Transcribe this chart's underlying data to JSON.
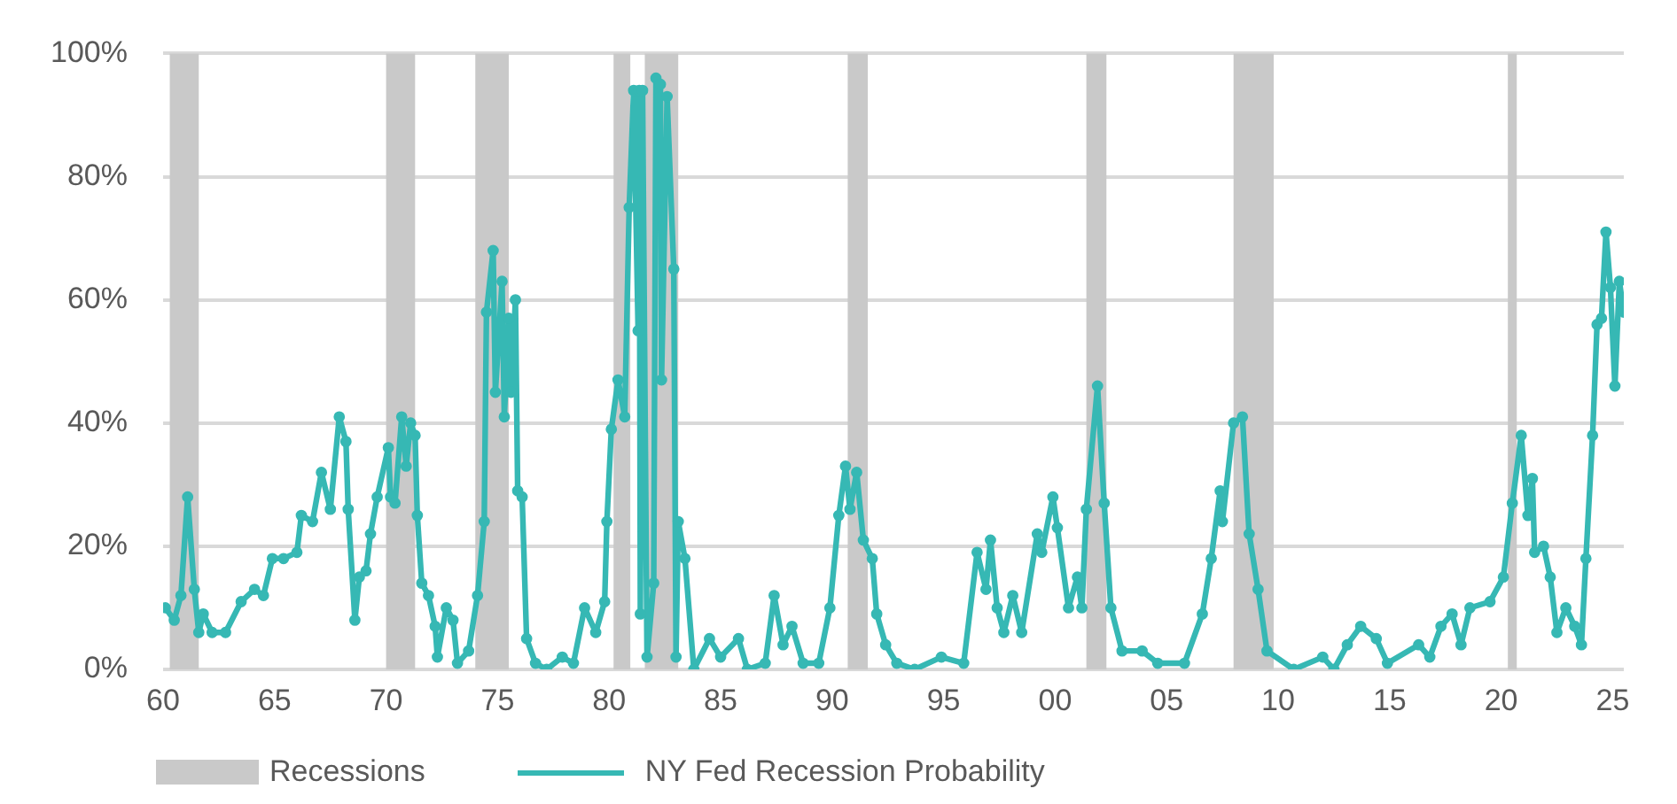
{
  "chart_data": {
    "type": "line",
    "xlim": [
      1960,
      2025.5
    ],
    "xticks": [
      {
        "value": 1960,
        "label": "60"
      },
      {
        "value": 1965,
        "label": "65"
      },
      {
        "value": 1970,
        "label": "70"
      },
      {
        "value": 1975,
        "label": "75"
      },
      {
        "value": 1980,
        "label": "80"
      },
      {
        "value": 1985,
        "label": "85"
      },
      {
        "value": 1990,
        "label": "90"
      },
      {
        "value": 1995,
        "label": "95"
      },
      {
        "value": 2000,
        "label": "00"
      },
      {
        "value": 2005,
        "label": "05"
      },
      {
        "value": 2010,
        "label": "10"
      },
      {
        "value": 2015,
        "label": "15"
      },
      {
        "value": 2020,
        "label": "20"
      },
      {
        "value": 2025,
        "label": "25"
      }
    ],
    "ylim": [
      0,
      100
    ],
    "yticks": [
      {
        "value": 0,
        "label": "0%"
      },
      {
        "value": 20,
        "label": "20%"
      },
      {
        "value": 40,
        "label": "40%"
      },
      {
        "value": 60,
        "label": "60%"
      },
      {
        "value": 80,
        "label": "80%"
      },
      {
        "value": 100,
        "label": "100%"
      }
    ],
    "grid": "y",
    "legend": "bottom",
    "marker": "circle",
    "bands": [
      {
        "axis": "x",
        "from": 1960.3,
        "to": 1961.6,
        "label": "Recessions",
        "color": "#c9c9c9"
      },
      {
        "axis": "x",
        "from": 1970.0,
        "to": 1971.3,
        "color": "#c9c9c9"
      },
      {
        "axis": "x",
        "from": 1974.0,
        "to": 1975.5,
        "color": "#c9c9c9"
      },
      {
        "axis": "x",
        "from": 1980.2,
        "to": 1980.95,
        "color": "#c9c9c9"
      },
      {
        "axis": "x",
        "from": 1981.6,
        "to": 1983.1,
        "color": "#c9c9c9"
      },
      {
        "axis": "x",
        "from": 1990.7,
        "to": 1991.6,
        "color": "#c9c9c9"
      },
      {
        "axis": "x",
        "from": 2001.4,
        "to": 2002.3,
        "color": "#c9c9c9"
      },
      {
        "axis": "x",
        "from": 2008.0,
        "to": 2009.8,
        "color": "#c9c9c9"
      },
      {
        "axis": "x",
        "from": 2020.3,
        "to": 2020.7,
        "color": "#c9c9c9"
      }
    ],
    "series": [
      {
        "name": "NY Fed Recession Probability",
        "color": "#36b8b4",
        "x": [
          1960.1,
          1960.5,
          1960.8,
          1961.1,
          1961.4,
          1961.6,
          1961.8,
          1962.2,
          1962.8,
          1963.5,
          1964.1,
          1964.5,
          1964.9,
          1965.4,
          1966,
          1966.2,
          1966.7,
          1967.1,
          1967.5,
          1967.9,
          1968.2,
          1968.3,
          1968.6,
          1968.8,
          1969.1,
          1969.3,
          1969.6,
          1970.1,
          1970.2,
          1970.4,
          1970.7,
          1970.9,
          1971.1,
          1971.3,
          1971.4,
          1971.6,
          1971.9,
          1972.2,
          1972.3,
          1972.7,
          1973,
          1973.2,
          1973.7,
          1974.1,
          1974.4,
          1974.5,
          1974.8,
          1974.9,
          1975.2,
          1975.3,
          1975.5,
          1975.6,
          1975.8,
          1975.9,
          1976.1,
          1976.3,
          1976.7,
          1977.2,
          1977.9,
          1978.4,
          1978.9,
          1979.4,
          1979.8,
          1979.9,
          1980.1,
          1980.4,
          1980.7,
          1980.9,
          1981.1,
          1981.3,
          1981.35,
          1981.4,
          1981.5,
          1981.7,
          1982,
          1982.1,
          1982.3,
          1982.35,
          1982.6,
          1982.9,
          1983,
          1983.1,
          1983.4,
          1983.8,
          1984.5,
          1985,
          1985.8,
          1986.2,
          1987,
          1987.4,
          1987.8,
          1988.2,
          1988.7,
          1989.4,
          1989.9,
          1990.3,
          1990.6,
          1990.8,
          1991.1,
          1991.4,
          1991.8,
          1992,
          1992.4,
          1992.9,
          1993.7,
          1994.9,
          1995.9,
          1996.5,
          1996.9,
          1997.1,
          1997.4,
          1997.7,
          1998.1,
          1998.5,
          1999.2,
          1999.4,
          1999.9,
          2000.1,
          2000.6,
          2001,
          2001.2,
          2001.4,
          2001.9,
          2002.2,
          2002.5,
          2003,
          2003.9,
          2004.6,
          2005.8,
          2006.6,
          2007,
          2007.4,
          2007.5,
          2008,
          2008.4,
          2008.7,
          2009.1,
          2009.5,
          2010.7,
          2012,
          2012.5,
          2013.1,
          2013.7,
          2014.4,
          2014.9,
          2016.3,
          2016.8,
          2017.3,
          2017.8,
          2018.2,
          2018.6,
          2019.5,
          2020.1,
          2020.5,
          2020.9,
          2021.2,
          2021.4,
          2021.5,
          2021.9,
          2022.2,
          2022.5,
          2022.9,
          2023.3,
          2023.6,
          2023.8,
          2024.1,
          2024.3,
          2024.5,
          2024.7,
          2024.9,
          2025.1,
          2025.3,
          2025.5
        ],
        "values": [
          10,
          8,
          12,
          28,
          13,
          6,
          9,
          6,
          6,
          11,
          13,
          12,
          18,
          18,
          19,
          25,
          24,
          32,
          26,
          41,
          37,
          26,
          8,
          15,
          16,
          22,
          28,
          36,
          28,
          27,
          41,
          33,
          40,
          38,
          25,
          14,
          12,
          7,
          2,
          10,
          8,
          1,
          3,
          12,
          24,
          58,
          68,
          45,
          63,
          41,
          57,
          45,
          60,
          29,
          28,
          5,
          1,
          0,
          2,
          1,
          10,
          6,
          11,
          24,
          39,
          47,
          41,
          75,
          94,
          55,
          94,
          9,
          94,
          2,
          14,
          96,
          95,
          47,
          93,
          65,
          2,
          24,
          18,
          0,
          5,
          2,
          5,
          0,
          1,
          12,
          4,
          7,
          1,
          1,
          10,
          25,
          33,
          26,
          32,
          21,
          18,
          9,
          4,
          1,
          0,
          2,
          1,
          19,
          13,
          21,
          10,
          6,
          12,
          6,
          22,
          19,
          28,
          23,
          10,
          15,
          10,
          26,
          46,
          27,
          10,
          3,
          3,
          1,
          1,
          9,
          18,
          29,
          24,
          40,
          41,
          22,
          13,
          3,
          0,
          2,
          0,
          4,
          7,
          5,
          1,
          4,
          2,
          7,
          9,
          4,
          10,
          11,
          15,
          27,
          38,
          25,
          31,
          19,
          20,
          15,
          6,
          10,
          7,
          4,
          18,
          38,
          56,
          57,
          71,
          62,
          46,
          63,
          58
        ]
      }
    ]
  }
}
